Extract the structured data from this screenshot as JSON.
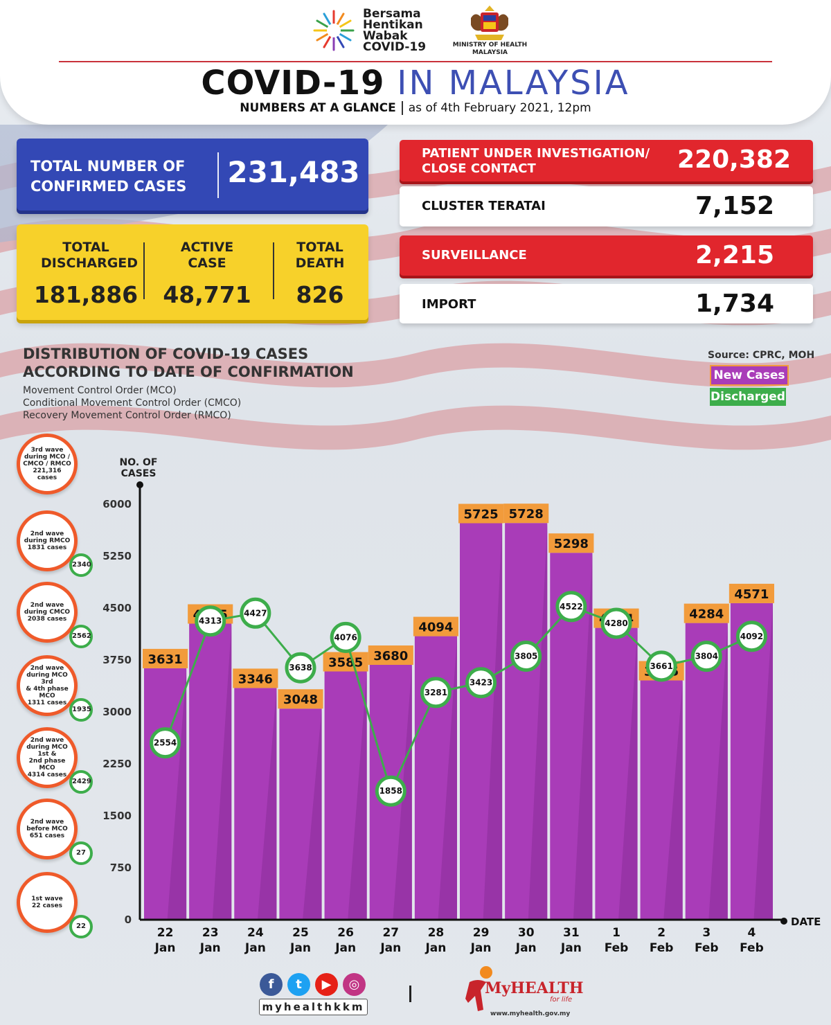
{
  "header": {
    "campaign_logo_text": [
      "Bersama",
      "Hentikan",
      "Wabak",
      "COVID-19"
    ],
    "ministry": "MINISTRY OF HEALTH MALAYSIA",
    "title_bold": "COVID-19",
    "title_light": "IN MALAYSIA",
    "subtitle_bold": "NUMBERS AT A GLANCE",
    "subtitle_date": "as of 4th February 2021, 12pm"
  },
  "totals": {
    "confirmed_label": "TOTAL NUMBER OF CONFIRMED CASES",
    "confirmed_value": "231,483",
    "discharged_label": "TOTAL DISCHARGED",
    "discharged_value": "181,886",
    "active_label": "ACTIVE CASE",
    "active_value": "48,771",
    "death_label": "TOTAL DEATH",
    "death_value": "826"
  },
  "side_stats": [
    {
      "label": "PATIENT UNDER INVESTIGATION/ CLOSE CONTACT",
      "value": "220,382",
      "style": "red"
    },
    {
      "label": "CLUSTER TERATAI",
      "value": "7,152",
      "style": "white"
    },
    {
      "label": "SURVEILLANCE",
      "value": "2,215",
      "style": "red"
    },
    {
      "label": "IMPORT",
      "value": "1,734",
      "style": "white"
    }
  ],
  "distribution": {
    "title_line1": "DISTRIBUTION OF COVID-19 CASES",
    "title_line2": "ACCORDING TO DATE OF CONFIRMATION",
    "notes": [
      "Movement Control Order (MCO)",
      "Conditional Movement Control Order (CMCO)",
      "Recovery Movement Control Order (RMCO)"
    ],
    "source": "Source: CPRC, MOH",
    "legend_new": "New Cases",
    "legend_discharged": "Discharged"
  },
  "waves": [
    {
      "text": [
        "3rd wave",
        "during MCO /",
        "CMCO / RMCO",
        "221,316",
        "cases"
      ],
      "discharged": ""
    },
    {
      "text": [
        "2nd wave",
        "during RMCO",
        "1831 cases"
      ],
      "discharged": "2340"
    },
    {
      "text": [
        "2nd wave",
        "during CMCO",
        "2038 cases"
      ],
      "discharged": "2562"
    },
    {
      "text": [
        "2nd wave",
        "during MCO 3rd",
        "& 4th phase MCO",
        "1311 cases"
      ],
      "discharged": "1935"
    },
    {
      "text": [
        "2nd wave",
        "during MCO 1st &",
        "2nd phase MCO",
        "4314 cases"
      ],
      "discharged": "2429"
    },
    {
      "text": [
        "2nd wave",
        "before MCO",
        "651 cases"
      ],
      "discharged": "27"
    },
    {
      "text": [
        "1st wave",
        "22 cases"
      ],
      "discharged": "22"
    }
  ],
  "chart_data": {
    "type": "bar",
    "ylabel": "NO. OF CASES",
    "xlabel": "DATE",
    "ylim": [
      0,
      6000
    ],
    "yticks": [
      0,
      750,
      1500,
      2250,
      3000,
      3750,
      4500,
      5250,
      6000
    ],
    "categories": [
      [
        "22",
        "Jan"
      ],
      [
        "23",
        "Jan"
      ],
      [
        "24",
        "Jan"
      ],
      [
        "25",
        "Jan"
      ],
      [
        "26",
        "Jan"
      ],
      [
        "27",
        "Jan"
      ],
      [
        "28",
        "Jan"
      ],
      [
        "29",
        "Jan"
      ],
      [
        "30",
        "Jan"
      ],
      [
        "31",
        "Jan"
      ],
      [
        "1",
        "Feb"
      ],
      [
        "2",
        "Feb"
      ],
      [
        "3",
        "Feb"
      ],
      [
        "4",
        "Feb"
      ]
    ],
    "series": [
      {
        "name": "New Cases",
        "type": "bar",
        "color": "#a93cb8",
        "values": [
          3631,
          4275,
          3346,
          3048,
          3585,
          3680,
          4094,
          5725,
          5728,
          5298,
          4214,
          3455,
          4284,
          4571
        ]
      },
      {
        "name": "Discharged",
        "type": "line",
        "color": "#3dad4b",
        "values": [
          2554,
          4313,
          4427,
          3638,
          4076,
          1858,
          3281,
          3423,
          3805,
          4522,
          4280,
          3661,
          3804,
          4092
        ]
      }
    ]
  },
  "footer": {
    "handle": "myhealthkkm",
    "brand": "MyHEALTH",
    "tagline": "for life",
    "url": "www.myhealth.gov.my"
  },
  "colors": {
    "blue": "#3348b5",
    "yellow": "#f7d12a",
    "red": "#e1262d",
    "bar": "#a93cb8",
    "bar_label": "#f29b3b",
    "line": "#3dad4b",
    "wave_ring": "#ef5a2a"
  }
}
